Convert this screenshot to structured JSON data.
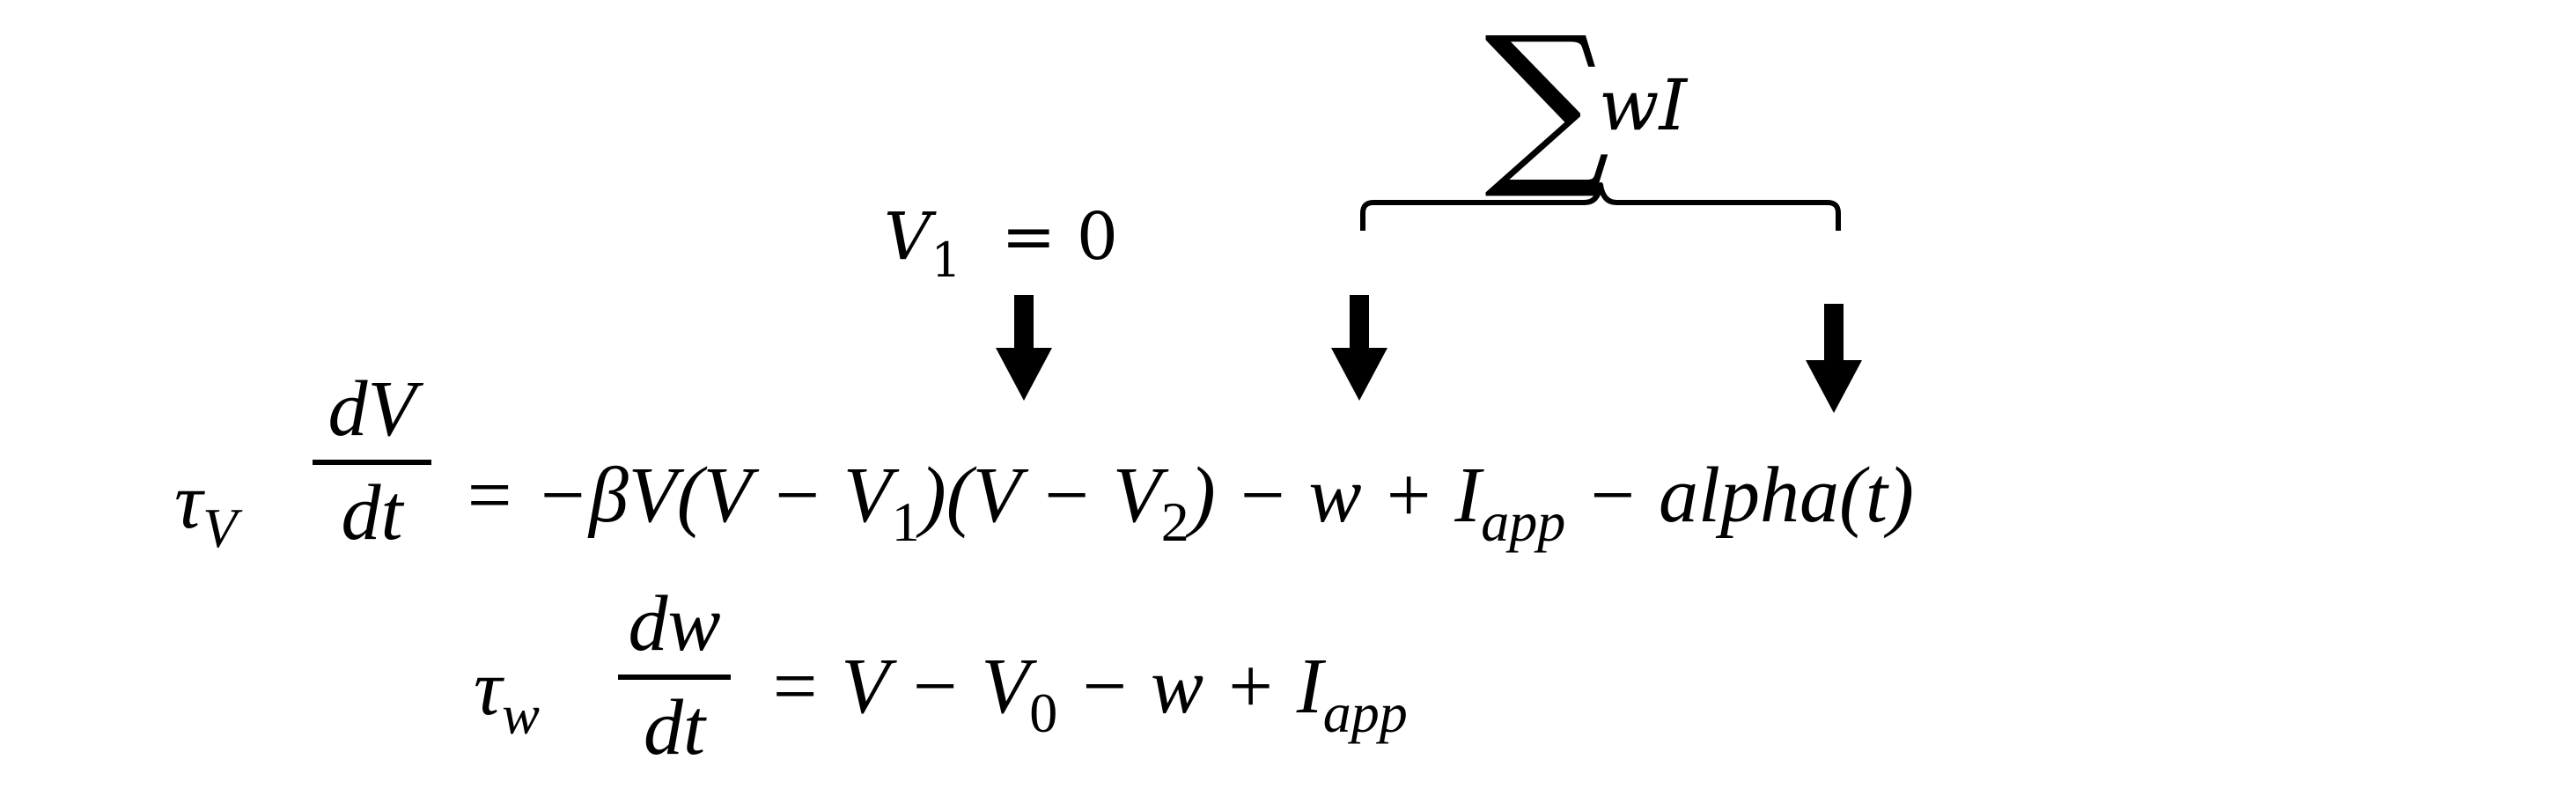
{
  "annotations": {
    "v1_label": {
      "symbol": "V",
      "sub": "1",
      "rest": "= 0"
    },
    "sum_label": {
      "sigma": "∑",
      "text": "wI"
    }
  },
  "equation1": {
    "lhs": {
      "symbol": "τ",
      "sub": "V"
    },
    "numerator": "dV",
    "denominator": "dt",
    "rhs": [
      {
        "t": "= −βV(V − V"
      },
      {
        "sub": "1"
      },
      {
        "t": ")(V − V"
      },
      {
        "sub": "2"
      },
      {
        "t": ") − w + I"
      },
      {
        "sub": "app"
      },
      {
        "t": " − alpha(t)"
      }
    ]
  },
  "equation2": {
    "lhs": {
      "symbol": "τ",
      "sub": "w"
    },
    "numerator": "dw",
    "denominator": "dt",
    "rhs": [
      {
        "t": "= V − V"
      },
      {
        "sub": "0"
      },
      {
        "t": " − w + I"
      },
      {
        "sub": "app"
      }
    ]
  },
  "arrows": [
    "v1-arrow",
    "v2-arrow",
    "iapp-arrow"
  ]
}
